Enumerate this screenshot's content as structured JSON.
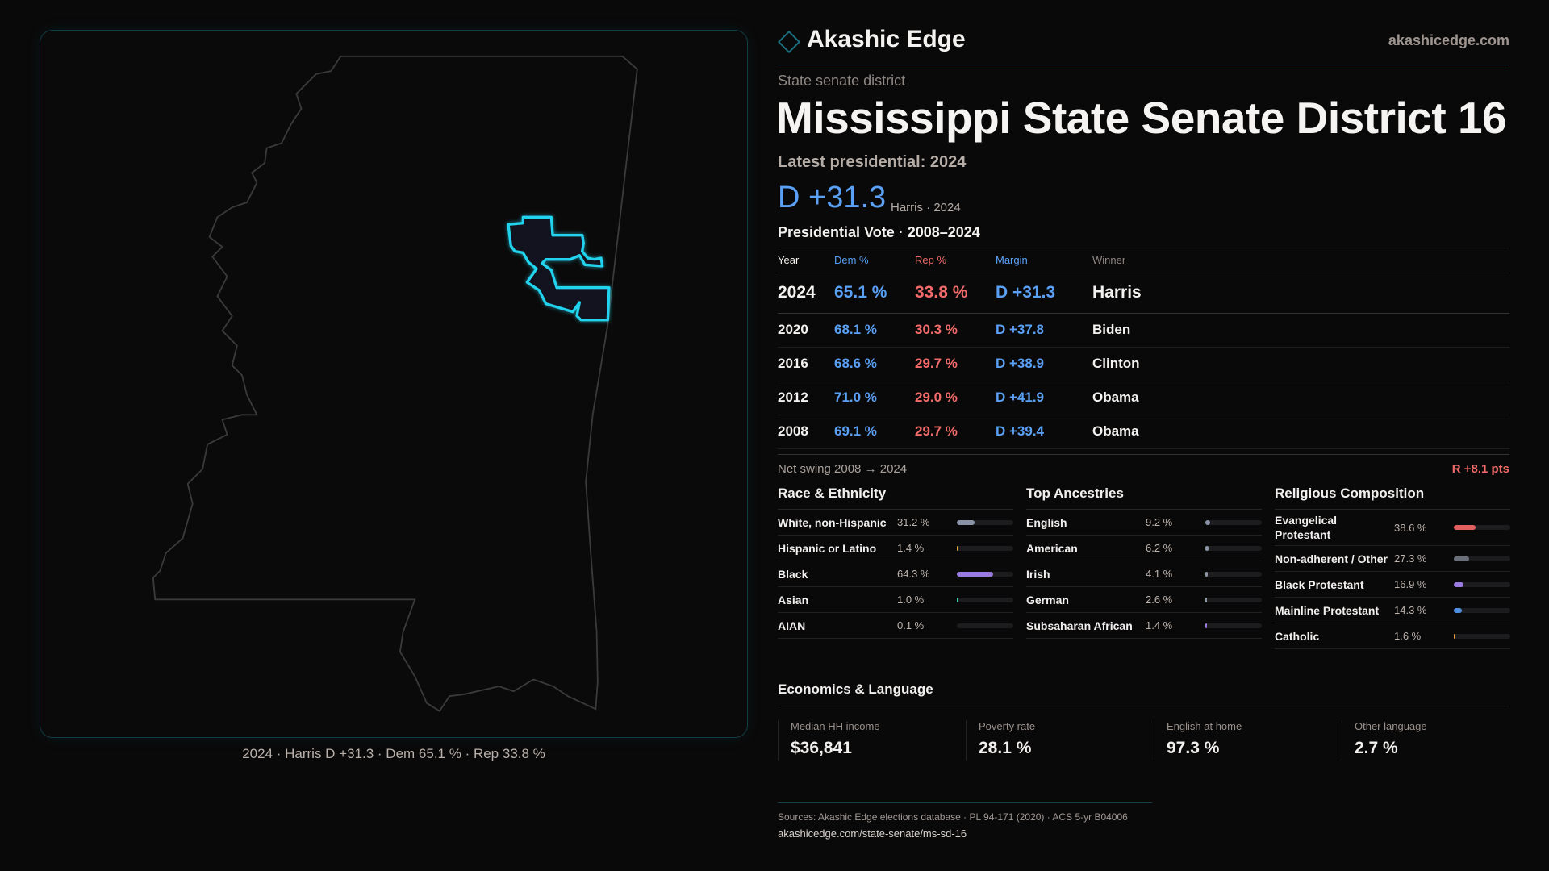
{
  "brand": {
    "name": "Akashic Edge",
    "site": "akashicedge.com"
  },
  "header": {
    "kicker": "State senate district",
    "title": "Mississippi State Senate District 16",
    "latest": "Latest presidential: 2024",
    "margin": "D +31.3",
    "margin_sub": "Harris · 2024"
  },
  "map": {
    "caption": "2024 · Harris D +31.3 · Dem 65.1 % · Rep 33.8 %",
    "district_color": "#22d3ee"
  },
  "presidential": {
    "title": "Presidential Vote · 2008–2024",
    "headers": [
      "Year",
      "Dem %",
      "Rep %",
      "Margin",
      "Winner"
    ],
    "rows": [
      [
        "2024",
        "65.1 %",
        "33.8 %",
        "D +31.3",
        "Harris"
      ],
      [
        "2020",
        "68.1 %",
        "30.3 %",
        "D +37.8",
        "Biden"
      ],
      [
        "2016",
        "68.6 %",
        "29.7 %",
        "D +38.9",
        "Clinton"
      ],
      [
        "2012",
        "71.0 %",
        "29.0 %",
        "D +41.9",
        "Obama"
      ],
      [
        "2008",
        "69.1 %",
        "29.7 %",
        "D +39.4",
        "Obama"
      ]
    ]
  },
  "swing": {
    "label": "Net swing 2008 → 2024",
    "value": "R +8.1 pts"
  },
  "demographics": [
    {
      "title": "Race & Ethnicity",
      "items": [
        {
          "label": "White, non-Hispanic",
          "pct": "31.2 %",
          "value": 31.2,
          "color": "#8a94a6"
        },
        {
          "label": "Hispanic or Latino",
          "pct": "1.4 %",
          "value": 1.4,
          "color": "#e8a23a"
        },
        {
          "label": "Black",
          "pct": "64.3 %",
          "value": 64.3,
          "color": "#9a7be0"
        },
        {
          "label": "Asian",
          "pct": "1.0 %",
          "value": 1.0,
          "color": "#3cc9a0"
        },
        {
          "label": "AIAN",
          "pct": "0.1 %",
          "value": 0.1,
          "color": "#d06a9a"
        }
      ]
    },
    {
      "title": "Top Ancestries",
      "items": [
        {
          "label": "English",
          "pct": "9.2 %",
          "value": 9.2,
          "color": "#8a94a6"
        },
        {
          "label": "American",
          "pct": "6.2 %",
          "value": 6.2,
          "color": "#8a94a6"
        },
        {
          "label": "Irish",
          "pct": "4.1 %",
          "value": 4.1,
          "color": "#8a94a6"
        },
        {
          "label": "German",
          "pct": "2.6 %",
          "value": 2.6,
          "color": "#8a94a6"
        },
        {
          "label": "Subsaharan African",
          "pct": "1.4 %",
          "value": 1.4,
          "color": "#9a7be0"
        }
      ]
    },
    {
      "title": "Religious Composition",
      "items": [
        {
          "label": "Evangelical Protestant",
          "pct": "38.6 %",
          "value": 38.6,
          "color": "#e06060"
        },
        {
          "label": "Non-adherent / Other",
          "pct": "27.3 %",
          "value": 27.3,
          "color": "#6b6f7a"
        },
        {
          "label": "Black Protestant",
          "pct": "16.9 %",
          "value": 16.9,
          "color": "#9a7be0"
        },
        {
          "label": "Mainline Protestant",
          "pct": "14.3 %",
          "value": 14.3,
          "color": "#4f8fe0"
        },
        {
          "label": "Catholic",
          "pct": "1.6 %",
          "value": 1.6,
          "color": "#e8a23a"
        }
      ]
    }
  ],
  "economics": {
    "title": "Economics & Language",
    "cards": [
      {
        "label": "Median HH income",
        "value": "$36,841"
      },
      {
        "label": "Poverty rate",
        "value": "28.1 %"
      },
      {
        "label": "English at home",
        "value": "97.3 %"
      },
      {
        "label": "Other language",
        "value": "2.7 %"
      }
    ]
  },
  "footer": {
    "sources": "Sources: Akashic Edge elections database · PL 94-171 (2020) · ACS 5-yr B04006",
    "url": "akashicedge.com/state-senate/ms-sd-16"
  }
}
